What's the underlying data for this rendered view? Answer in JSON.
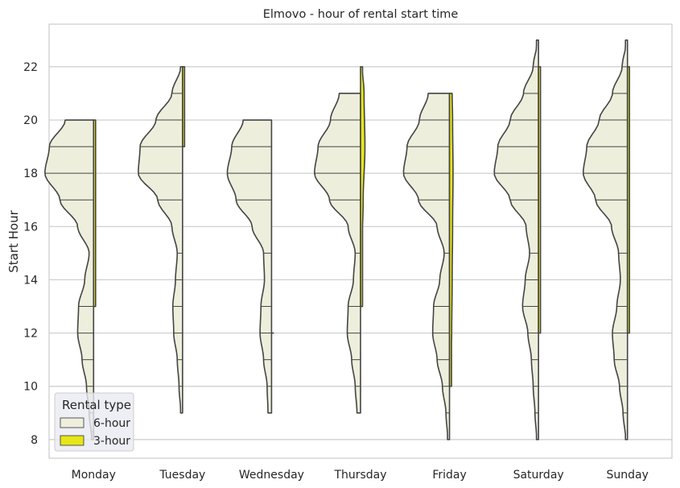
{
  "chart_data": {
    "type": "violin",
    "title": "Elmovo - hour of rental start time",
    "xlabel": "",
    "ylabel": "Start Hour",
    "ylim": [
      7.3,
      23.6
    ],
    "yticks": [
      8,
      10,
      12,
      14,
      16,
      18,
      20,
      22
    ],
    "categories": [
      "Monday",
      "Tuesday",
      "Wednesday",
      "Thursday",
      "Friday",
      "Saturday",
      "Sunday"
    ],
    "grid": true,
    "legend": {
      "title": "Rental type",
      "position": "lower-left",
      "entries": [
        "6-hour",
        "3-hour"
      ]
    },
    "series": [
      {
        "name": "6-hour",
        "color": "#eeeedd",
        "side": "left",
        "violins": [
          {
            "min": 8,
            "max": 20,
            "profile": [
              [
                8,
                0.02
              ],
              [
                9,
                0.05
              ],
              [
                10,
                0.08
              ],
              [
                11,
                0.13
              ],
              [
                12,
                0.18
              ],
              [
                13,
                0.17
              ],
              [
                14,
                0.1
              ],
              [
                15,
                0.05
              ],
              [
                16,
                0.18
              ],
              [
                17,
                0.38
              ],
              [
                18,
                0.55
              ],
              [
                19,
                0.5
              ],
              [
                20,
                0.32
              ]
            ],
            "quartiles": [
              8.3,
              9,
              10,
              11,
              12,
              13,
              17,
              18,
              19
            ]
          },
          {
            "min": 9,
            "max": 22,
            "profile": [
              [
                9,
                0.02
              ],
              [
                10,
                0.04
              ],
              [
                11,
                0.06
              ],
              [
                12,
                0.1
              ],
              [
                13,
                0.11
              ],
              [
                14,
                0.08
              ],
              [
                15,
                0.06
              ],
              [
                16,
                0.12
              ],
              [
                17,
                0.28
              ],
              [
                18,
                0.5
              ],
              [
                19,
                0.48
              ],
              [
                20,
                0.3
              ],
              [
                21,
                0.12
              ],
              [
                22,
                0.02
              ]
            ],
            "quartiles": [
              10,
              11,
              12,
              13,
              14,
              15,
              17,
              18,
              19,
              20,
              21
            ]
          },
          {
            "min": 9,
            "max": 20,
            "profile": [
              [
                9,
                0.04
              ],
              [
                10,
                0.05
              ],
              [
                11,
                0.09
              ],
              [
                12,
                0.13
              ],
              [
                13,
                0.12
              ],
              [
                14,
                0.08
              ],
              [
                15,
                0.09
              ],
              [
                16,
                0.22
              ],
              [
                17,
                0.4
              ],
              [
                18,
                0.5
              ],
              [
                19,
                0.45
              ],
              [
                20,
                0.32
              ]
            ],
            "quartiles": [
              10,
              11,
              12,
              13,
              15,
              17,
              18,
              19
            ]
          },
          {
            "min": 9,
            "max": 21,
            "profile": [
              [
                9,
                0.04
              ],
              [
                10,
                0.06
              ],
              [
                11,
                0.1
              ],
              [
                12,
                0.15
              ],
              [
                13,
                0.14
              ],
              [
                14,
                0.08
              ],
              [
                15,
                0.06
              ],
              [
                16,
                0.14
              ],
              [
                17,
                0.35
              ],
              [
                18,
                0.52
              ],
              [
                19,
                0.48
              ],
              [
                20,
                0.34
              ],
              [
                21,
                0.24
              ]
            ],
            "quartiles": [
              10,
              11,
              12,
              13,
              15,
              17,
              18,
              19,
              20
            ]
          },
          {
            "min": 8,
            "max": 21,
            "profile": [
              [
                8,
                0.02
              ],
              [
                9,
                0.04
              ],
              [
                10,
                0.08
              ],
              [
                11,
                0.14
              ],
              [
                12,
                0.19
              ],
              [
                13,
                0.18
              ],
              [
                14,
                0.11
              ],
              [
                15,
                0.06
              ],
              [
                16,
                0.14
              ],
              [
                17,
                0.35
              ],
              [
                18,
                0.52
              ],
              [
                19,
                0.48
              ],
              [
                20,
                0.34
              ],
              [
                21,
                0.24
              ]
            ],
            "quartiles": [
              9,
              10,
              11,
              12,
              13,
              15,
              17,
              18,
              19,
              20
            ]
          },
          {
            "min": 8,
            "max": 23,
            "profile": [
              [
                8,
                0.02
              ],
              [
                9,
                0.04
              ],
              [
                10,
                0.06
              ],
              [
                11,
                0.08
              ],
              [
                12,
                0.12
              ],
              [
                13,
                0.18
              ],
              [
                14,
                0.15
              ],
              [
                15,
                0.1
              ],
              [
                16,
                0.14
              ],
              [
                17,
                0.32
              ],
              [
                18,
                0.5
              ],
              [
                19,
                0.46
              ],
              [
                20,
                0.32
              ],
              [
                21,
                0.17
              ],
              [
                22,
                0.06
              ],
              [
                23,
                0.01
              ]
            ],
            "quartiles": [
              9,
              10,
              11,
              12,
              13,
              14,
              15,
              17,
              18,
              19,
              20,
              21,
              22
            ]
          },
          {
            "min": 8,
            "max": 23,
            "profile": [
              [
                8,
                0.02
              ],
              [
                9,
                0.05
              ],
              [
                10,
                0.09
              ],
              [
                11,
                0.15
              ],
              [
                12,
                0.17
              ],
              [
                13,
                0.12
              ],
              [
                14,
                0.08
              ],
              [
                15,
                0.1
              ],
              [
                16,
                0.18
              ],
              [
                17,
                0.36
              ],
              [
                18,
                0.5
              ],
              [
                19,
                0.46
              ],
              [
                20,
                0.32
              ],
              [
                21,
                0.17
              ],
              [
                22,
                0.06
              ],
              [
                23,
                0.01
              ]
            ],
            "quartiles": [
              9,
              10,
              11,
              12,
              13,
              15,
              17,
              18,
              19,
              20,
              21,
              22
            ]
          }
        ]
      },
      {
        "name": "3-hour",
        "color": "#e6e619",
        "side": "right",
        "violins": [
          {
            "min": 13,
            "max": 20,
            "profile": [
              [
                13,
                0.01
              ],
              [
                16,
                0.01
              ],
              [
                20,
                0.01
              ]
            ],
            "quartiles": []
          },
          {
            "min": 19,
            "max": 22,
            "profile": [
              [
                19,
                0.01
              ],
              [
                20,
                0.015
              ],
              [
                22,
                0.01
              ]
            ],
            "quartiles": []
          },
          {
            "min": 12,
            "max": 12,
            "profile": [
              [
                12,
                0.005
              ]
            ],
            "quartiles": []
          },
          {
            "min": 13,
            "max": 22,
            "profile": [
              [
                13,
                0.01
              ],
              [
                15,
                0.015
              ],
              [
                17,
                0.03
              ],
              [
                19,
                0.05
              ],
              [
                21,
                0.04
              ],
              [
                22,
                0.02
              ]
            ],
            "quartiles": []
          },
          {
            "min": 10,
            "max": 21,
            "profile": [
              [
                10,
                0.01
              ],
              [
                11,
                0.015
              ],
              [
                12,
                0.025
              ],
              [
                14,
                0.03
              ],
              [
                16,
                0.035
              ],
              [
                18,
                0.04
              ],
              [
                20,
                0.035
              ],
              [
                21,
                0.03
              ]
            ],
            "quartiles": []
          },
          {
            "min": 12,
            "max": 22,
            "profile": [
              [
                12,
                0.01
              ],
              [
                16,
                0.015
              ],
              [
                20,
                0.02
              ],
              [
                22,
                0.015
              ]
            ],
            "quartiles": []
          },
          {
            "min": 12,
            "max": 22,
            "profile": [
              [
                12,
                0.01
              ],
              [
                16,
                0.015
              ],
              [
                20,
                0.02
              ],
              [
                22,
                0.015
              ]
            ],
            "quartiles": []
          }
        ]
      }
    ]
  }
}
